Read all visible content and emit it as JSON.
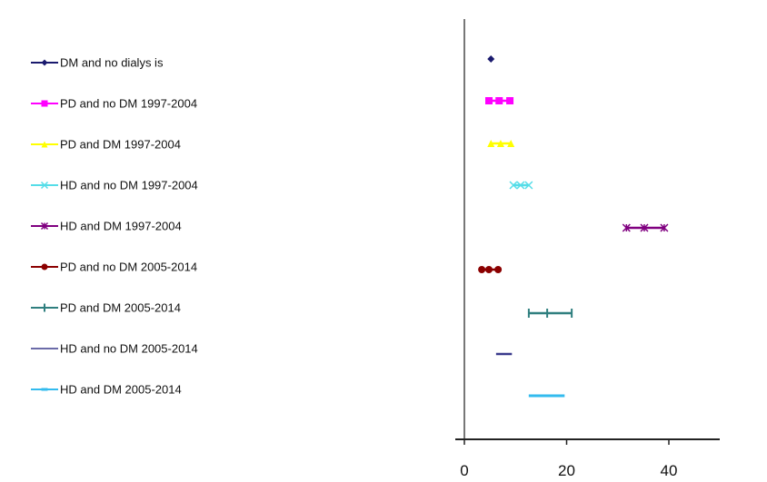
{
  "chart_data": {
    "type": "scatter",
    "subtype": "forest-plot",
    "title": "",
    "xlabel": "",
    "ylabel": "",
    "xlim": [
      0,
      50
    ],
    "x_ticks": [
      0,
      20,
      40
    ],
    "grid": false,
    "legend_position": "left",
    "series": [
      {
        "name": "DM and no dialys is",
        "color": "#1a1a6e",
        "marker": "diamond",
        "values": [
          5.2
        ],
        "low": 5.2,
        "estimate": 5.2,
        "high": 5.2
      },
      {
        "name": "PD and no DM 1997-2004",
        "color": "#ff00ff",
        "marker": "square",
        "values": [
          4.8,
          6.8,
          8.9
        ],
        "low": 4.8,
        "estimate": 6.8,
        "high": 8.9
      },
      {
        "name": "PD and DM 1997-2004",
        "color": "#ffff00",
        "marker": "triangle",
        "values": [
          5.2,
          7.1,
          9.1
        ],
        "low": 5.2,
        "estimate": 7.1,
        "high": 9.1
      },
      {
        "name": "HD and no DM 1997-2004",
        "color": "#55dde8",
        "marker": "x",
        "values": [
          9.6,
          11.0,
          12.6
        ],
        "low": 9.6,
        "estimate": 11.0,
        "high": 12.6
      },
      {
        "name": "HD and DM 1997-2004",
        "color": "#800080",
        "marker": "star",
        "values": [
          31.7,
          35.2,
          39.1
        ],
        "low": 31.7,
        "estimate": 35.2,
        "high": 39.1
      },
      {
        "name": "PD and no DM 2005-2014",
        "color": "#8b0000",
        "marker": "circle",
        "values": [
          3.4,
          4.8,
          6.6
        ],
        "low": 3.4,
        "estimate": 4.8,
        "high": 6.6
      },
      {
        "name": "PD and DM 2005-2014",
        "color": "#2f7f7f",
        "marker": "plus",
        "values": [
          12.6,
          16.2,
          21.0
        ],
        "low": 12.6,
        "estimate": 16.2,
        "high": 21.0
      },
      {
        "name": "HD and no DM 2005-2014",
        "color": "#3a3a8c",
        "marker": "none",
        "values": [
          6.2,
          7.7,
          9.3
        ],
        "low": 6.2,
        "estimate": 7.7,
        "high": 9.3
      },
      {
        "name": "HD and DM 2005-2014",
        "color": "#33bbee",
        "marker": "dash",
        "values": [
          13.3,
          16.0,
          18.9
        ],
        "low": 13.3,
        "estimate": 16.0,
        "high": 18.9
      }
    ]
  },
  "axis": {
    "tick_labels": [
      "0",
      "20",
      "40"
    ]
  },
  "legend": {
    "items": [
      "DM and no dialys is",
      "PD and no DM 1997-2004",
      "PD and DM 1997-2004",
      "HD and no DM 1997-2004",
      "HD and DM 1997-2004",
      "PD and no DM 2005-2014",
      "PD and DM 2005-2014",
      "HD and no DM 2005-2014",
      "HD and DM 2005-2014"
    ]
  }
}
